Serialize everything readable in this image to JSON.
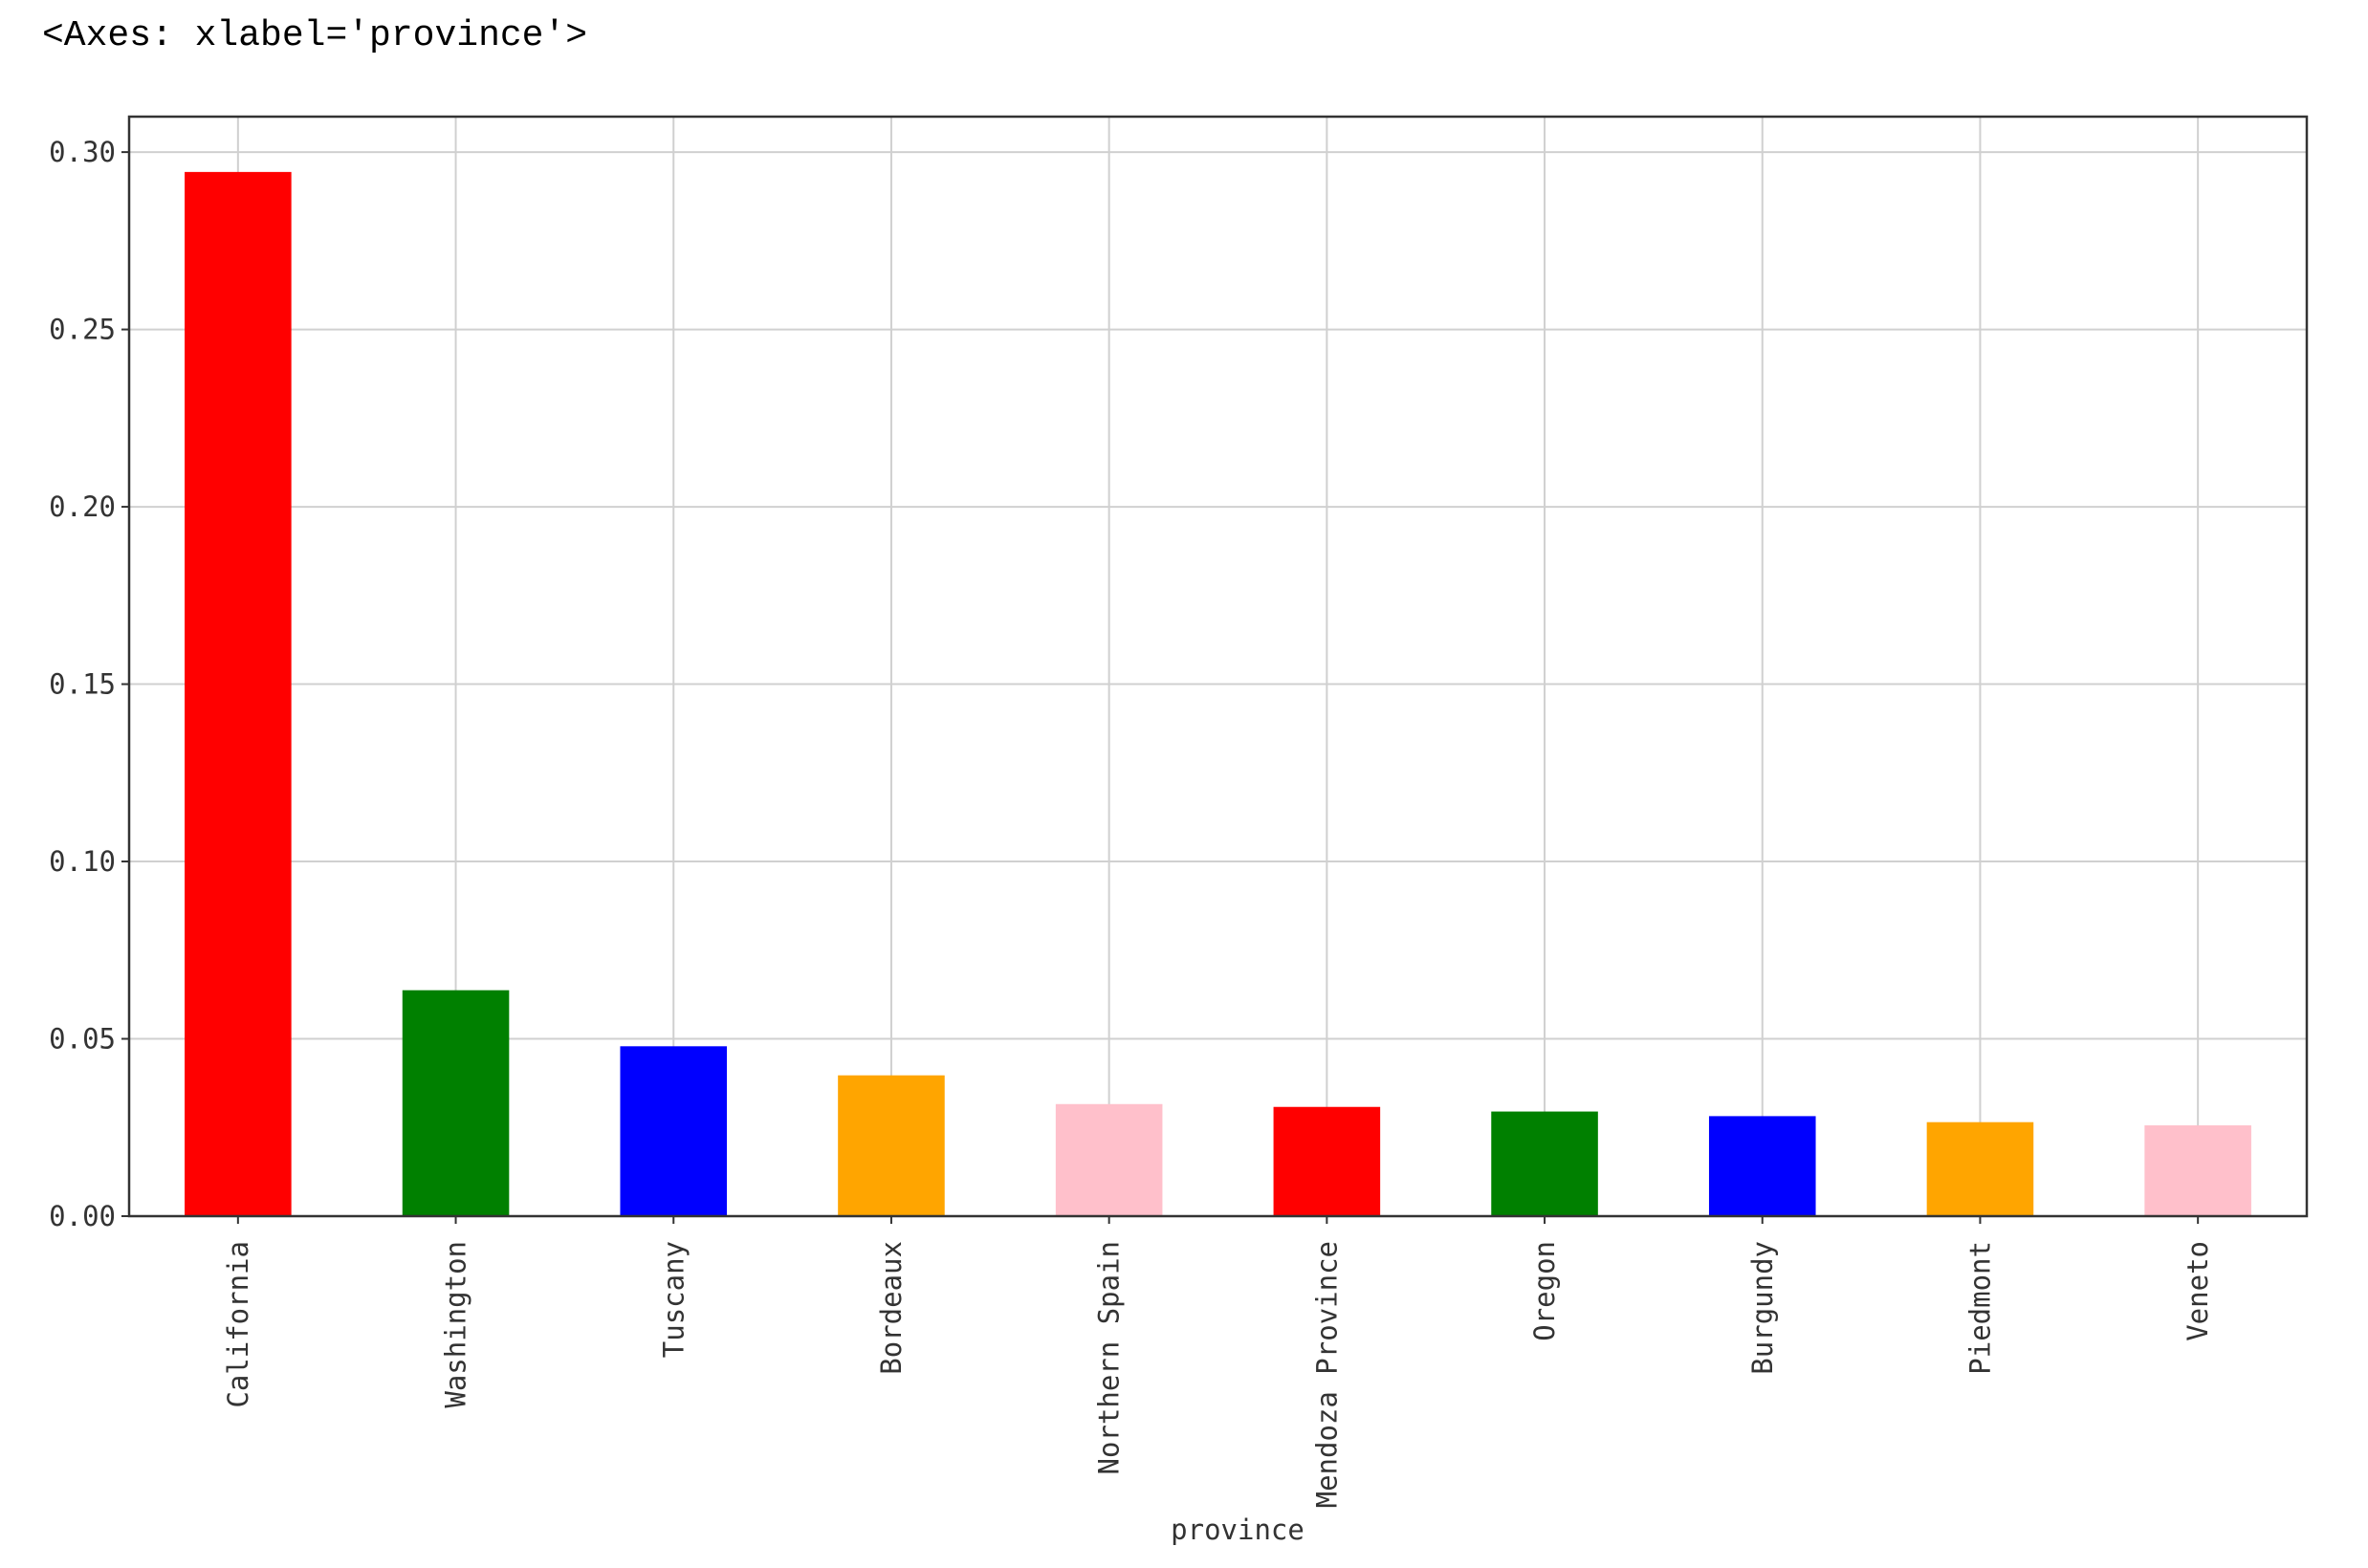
{
  "header": {
    "output": "<Axes: xlabel='province'>"
  },
  "chart_data": {
    "type": "bar",
    "xlabel": "province",
    "categories": [
      "California",
      "Washington",
      "Tuscany",
      "Bordeaux",
      "Northern Spain",
      "Mendoza Province",
      "Oregon",
      "Burgundy",
      "Piedmont",
      "Veneto"
    ],
    "values": [
      0.2944,
      0.0637,
      0.0479,
      0.0397,
      0.0316,
      0.0308,
      0.0295,
      0.0282,
      0.0265,
      0.0256
    ],
    "colors": [
      "#ff0000",
      "#008000",
      "#0000ff",
      "#ffa500",
      "#ffc0cb",
      "#ff0000",
      "#008000",
      "#0000ff",
      "#ffa500",
      "#ffc0cb"
    ],
    "ylim": [
      0,
      0.31
    ],
    "yticks": [
      {
        "value": 0,
        "label": "0.00"
      },
      {
        "value": 0.05,
        "label": "0.05"
      },
      {
        "value": 0.1,
        "label": "0.10"
      },
      {
        "value": 0.15,
        "label": "0.15"
      },
      {
        "value": 0.2,
        "label": "0.20"
      },
      {
        "value": 0.25,
        "label": "0.25"
      },
      {
        "value": 0.3,
        "label": "0.30"
      }
    ],
    "grid": true
  }
}
